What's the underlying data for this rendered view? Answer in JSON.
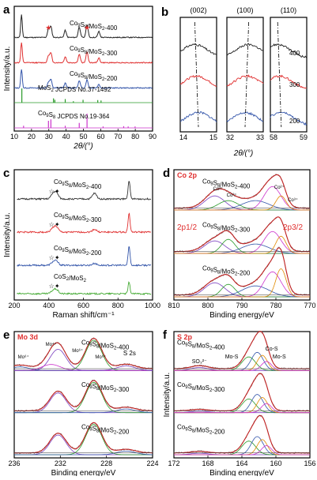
{
  "chart_data": [
    {
      "panel": "a",
      "type": "line",
      "xlabel": "2θ/(°)",
      "ylabel": "Intensity/a.u.",
      "xlim": [
        10,
        90
      ],
      "xticks": [
        "10",
        "20",
        "30",
        "40",
        "50",
        "60",
        "70",
        "80",
        "90"
      ],
      "series": [
        {
          "name": "Co9S8/MoS2-400",
          "color": "#222222",
          "peaks": [
            [
              14.2,
              0.95
            ],
            [
              29.8,
              0.35
            ],
            [
              31.2,
              0.45
            ],
            [
              39.5,
              0.3
            ],
            [
              47.6,
              0.45
            ],
            [
              52.1,
              0.55
            ],
            [
              58.9,
              0.25
            ]
          ]
        },
        {
          "name": "Co9S8/MoS2-300",
          "color": "#e03030",
          "peaks": [
            [
              14.2,
              0.85
            ],
            [
              29.8,
              0.3
            ],
            [
              31.2,
              0.4
            ],
            [
              39.5,
              0.25
            ],
            [
              47.6,
              0.35
            ],
            [
              52.1,
              0.45
            ],
            [
              58.9,
              0.2
            ]
          ]
        },
        {
          "name": "Co9S8/MoS2-200",
          "color": "#3355aa",
          "peaks": [
            [
              14.2,
              0.8
            ],
            [
              29.8,
              0.25
            ],
            [
              31.2,
              0.35
            ],
            [
              39.5,
              0.2
            ],
            [
              47.6,
              0.3
            ],
            [
              52.1,
              0.35
            ],
            [
              58.9,
              0.15
            ]
          ]
        }
      ],
      "references": [
        {
          "name": "MoS2 JCPDS No.37-1492",
          "color": "#2a9a2a",
          "lines": [
            [
              14.4,
              1.0
            ],
            [
              32.7,
              0.3
            ],
            [
              33.5,
              0.2
            ],
            [
              39.5,
              0.25
            ],
            [
              44.2,
              0.1
            ],
            [
              49.8,
              0.2
            ],
            [
              58.3,
              0.18
            ],
            [
              60.2,
              0.15
            ]
          ]
        },
        {
          "name": "Co9S8 JCPDS No.19-364",
          "color": "#cc33cc",
          "lines": [
            [
              15.4,
              0.15
            ],
            [
              29.8,
              0.5
            ],
            [
              31.2,
              0.6
            ],
            [
              39.5,
              0.15
            ],
            [
              47.6,
              0.35
            ],
            [
              52.1,
              1.0
            ],
            [
              61.4,
              0.1
            ],
            [
              73.3,
              0.12
            ],
            [
              75.9,
              0.1
            ],
            [
              79.9,
              0.1
            ]
          ]
        }
      ],
      "annotations": {
        "star_symbol": "★",
        "star_positions": [
          29.8,
          52.1
        ]
      }
    },
    {
      "panel": "b",
      "type": "line",
      "xlabel": "2θ/(°)",
      "subpanels": [
        {
          "label": "(002)",
          "xlim": [
            14,
            15
          ],
          "xticks": [
            "14",
            "15"
          ],
          "guide": [
            14.4,
            14.5
          ]
        },
        {
          "label": "(100)",
          "xlim": [
            32,
            33
          ],
          "xticks": [
            "32",
            "33"
          ],
          "guide": [
            32.6,
            32.5
          ]
        },
        {
          "label": "(110)",
          "xlim": [
            58,
            59
          ],
          "xticks": [
            "58",
            "59"
          ],
          "guide": [
            58.2,
            58.3
          ]
        }
      ],
      "series": [
        {
          "name": "400",
          "color": "#222222"
        },
        {
          "name": "300",
          "color": "#e03030"
        },
        {
          "name": "200",
          "color": "#3355aa"
        }
      ]
    },
    {
      "panel": "c",
      "type": "line",
      "xlabel": "Raman shift/cm⁻¹",
      "ylabel": "Intensity/a.u.",
      "xlim": [
        100,
        1100
      ],
      "xticks": [
        "200",
        "400",
        "600",
        "800",
        "1000"
      ],
      "series": [
        {
          "name": "Co9S8/MoS2-400",
          "color": "#333333",
          "peaks": [
            [
              380,
              0.25
            ],
            [
              405,
              0.3
            ],
            [
              680,
              0.3
            ],
            [
              930,
              1.0
            ]
          ]
        },
        {
          "name": "Co9S8/MoS2-300",
          "color": "#e03030",
          "peaks": [
            [
              380,
              0.2
            ],
            [
              405,
              0.25
            ],
            [
              680,
              0.15
            ],
            [
              930,
              1.0
            ]
          ]
        },
        {
          "name": "Co9S8/MoS2-200",
          "color": "#3355aa",
          "peaks": [
            [
              380,
              0.15
            ],
            [
              405,
              0.2
            ],
            [
              680,
              0.1
            ],
            [
              930,
              1.0
            ]
          ]
        },
        {
          "name": "CoS2/MoS2",
          "color": "#44aa33",
          "peaks": [
            [
              380,
              0.15
            ],
            [
              405,
              0.2
            ],
            [
              930,
              0.6
            ]
          ]
        }
      ],
      "markers": {
        "star": "☆",
        "diamond": "✦"
      }
    },
    {
      "panel": "d",
      "type": "line",
      "tag": "Co 2p",
      "xlabel": "Binding energy/eV",
      "ylabel": "",
      "xlim": [
        810,
        770
      ],
      "xticks": [
        "810",
        "800",
        "790",
        "780",
        "770"
      ],
      "spectra": [
        {
          "name": "Co9S8/MoS2-400",
          "peaks": [
            [
              798,
              0.45,
              3
            ],
            [
              794,
              0.3,
              3
            ],
            [
              786,
              0.3,
              4
            ],
            [
              781,
              0.75,
              2.5
            ],
            [
              778.5,
              0.45,
              1.5
            ]
          ]
        },
        {
          "name": "Co9S8/MoS2-300",
          "peaks": [
            [
              798,
              0.4,
              3
            ],
            [
              794,
              0.45,
              2
            ],
            [
              786,
              0.3,
              4
            ],
            [
              781,
              0.7,
              2.5
            ],
            [
              778.5,
              0.55,
              1.5
            ]
          ]
        },
        {
          "name": "Co9S8/MoS2-200",
          "peaks": [
            [
              798,
              0.45,
              3
            ],
            [
              794,
              0.4,
              2
            ],
            [
              786,
              0.35,
              4
            ],
            [
              781,
              0.8,
              2.5
            ],
            [
              778.5,
              0.9,
              1.5
            ]
          ]
        }
      ],
      "annotations": [
        "Co²⁺",
        "Co³⁺",
        "Co²⁺",
        "Co³⁺",
        "2p1/2",
        "2p3/2"
      ]
    },
    {
      "panel": "e",
      "type": "line",
      "tag": "Mo 3d",
      "xlabel": "Binding energy/eV",
      "ylabel": "",
      "xlim": [
        236,
        224
      ],
      "xticks": [
        "236",
        "232",
        "228",
        "224"
      ],
      "spectra": [
        {
          "name": "Co9S8/MoS2-400",
          "peaks": [
            [
              232.2,
              0.7,
              0.7
            ],
            [
              229.1,
              1.0,
              0.7
            ],
            [
              235.5,
              0.12,
              0.8
            ],
            [
              232.8,
              0.2,
              0.8
            ],
            [
              226.3,
              0.15,
              0.8
            ]
          ]
        },
        {
          "name": "Co9S8/MoS2-300",
          "peaks": [
            [
              232.2,
              0.65,
              0.7
            ],
            [
              229.1,
              1.0,
              0.7
            ],
            [
              226.3,
              0.12,
              0.8
            ]
          ]
        },
        {
          "name": "Co9S8/MoS2-200",
          "peaks": [
            [
              232.2,
              0.65,
              0.7
            ],
            [
              229.1,
              1.0,
              0.7
            ],
            [
              226.3,
              0.12,
              0.8
            ]
          ]
        }
      ],
      "annotations": [
        "Mo⁴⁺",
        "Mo⁶⁺",
        "Mo⁴⁺",
        "Mo⁶⁺",
        "S 2s",
        "Mo⁶⁺"
      ]
    },
    {
      "panel": "f",
      "type": "line",
      "tag": "S 2p",
      "xlabel": "Binding energy/eV",
      "ylabel": "Intensity/a.u.",
      "xlim": [
        172,
        156
      ],
      "xticks": [
        "172",
        "168",
        "164",
        "160",
        "156"
      ],
      "spectra": [
        {
          "name": "Co9S8/MoS2-400",
          "peaks": [
            [
              169,
              0.1,
              1
            ],
            [
              163.2,
              0.45,
              0.8
            ],
            [
              162.2,
              0.6,
              0.7
            ],
            [
              161.6,
              0.5,
              0.6
            ],
            [
              161.1,
              0.3,
              0.6
            ]
          ]
        },
        {
          "name": "Co9S8/MoS2-300",
          "peaks": [
            [
              169,
              0.05,
              1
            ],
            [
              163.2,
              0.45,
              0.8
            ],
            [
              162.2,
              0.6,
              0.7
            ],
            [
              161.6,
              0.5,
              0.6
            ],
            [
              161.1,
              0.3,
              0.6
            ]
          ]
        },
        {
          "name": "Co9S8/MoS2-200",
          "peaks": [
            [
              169,
              0.05,
              1
            ],
            [
              163.2,
              0.45,
              0.8
            ],
            [
              162.2,
              0.6,
              0.7
            ],
            [
              161.6,
              0.5,
              0.6
            ],
            [
              161.1,
              0.3,
              0.6
            ]
          ]
        }
      ],
      "annotations": [
        "Co-S",
        "Mo-S",
        "Mo-S",
        "SO₃²⁻"
      ]
    }
  ]
}
